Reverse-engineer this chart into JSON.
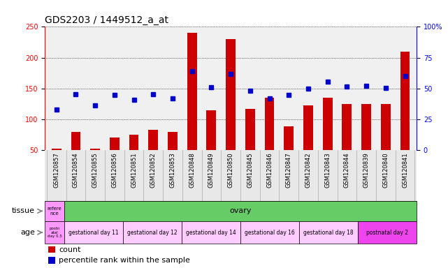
{
  "title": "GDS2203 / 1449512_a_at",
  "samples": [
    "GSM120857",
    "GSM120854",
    "GSM120855",
    "GSM120856",
    "GSM120851",
    "GSM120852",
    "GSM120853",
    "GSM120848",
    "GSM120849",
    "GSM120850",
    "GSM120845",
    "GSM120846",
    "GSM120847",
    "GSM120842",
    "GSM120843",
    "GSM120844",
    "GSM120839",
    "GSM120840",
    "GSM120841"
  ],
  "counts": [
    52,
    80,
    52,
    70,
    75,
    83,
    80,
    240,
    115,
    230,
    117,
    135,
    88,
    122,
    135,
    125,
    125,
    125,
    210
  ],
  "percentile_yvals": [
    116,
    141,
    122,
    139,
    132,
    141,
    134,
    178,
    152,
    173,
    146,
    134,
    139,
    150,
    161,
    153,
    154,
    151,
    170
  ],
  "bar_color": "#cc0000",
  "dot_color": "#0000cc",
  "ylim_left": [
    50,
    250
  ],
  "ylim_right": [
    0,
    100
  ],
  "yticks_left": [
    50,
    100,
    150,
    200,
    250
  ],
  "yticks_right": [
    0,
    25,
    50,
    75,
    100
  ],
  "grid_color": "black",
  "bg_color": "#e8e8e8",
  "plot_bg": "#f0f0f0",
  "tissue_row": {
    "label": "tissue",
    "first_cell_text": "refere\nnce",
    "first_cell_color": "#ff99ff",
    "main_text": "ovary",
    "main_color": "#66cc66"
  },
  "age_row": {
    "label": "age",
    "first_cell_text": "postn\natal\nday 0.5",
    "first_cell_color": "#ff99ff",
    "groups": [
      {
        "text": "gestational day 11",
        "color": "#ffccff",
        "count": 3
      },
      {
        "text": "gestational day 12",
        "color": "#ffccff",
        "count": 3
      },
      {
        "text": "gestational day 14",
        "color": "#ffccff",
        "count": 3
      },
      {
        "text": "gestational day 16",
        "color": "#ffccff",
        "count": 3
      },
      {
        "text": "gestational day 18",
        "color": "#ffccff",
        "count": 3
      },
      {
        "text": "postnatal day 2",
        "color": "#ee44ee",
        "count": 3
      }
    ]
  },
  "legend_count_color": "#cc0000",
  "legend_pct_color": "#0000cc",
  "title_fontsize": 10,
  "tick_fontsize": 7,
  "label_fontsize": 8,
  "xtick_fontsize": 6
}
